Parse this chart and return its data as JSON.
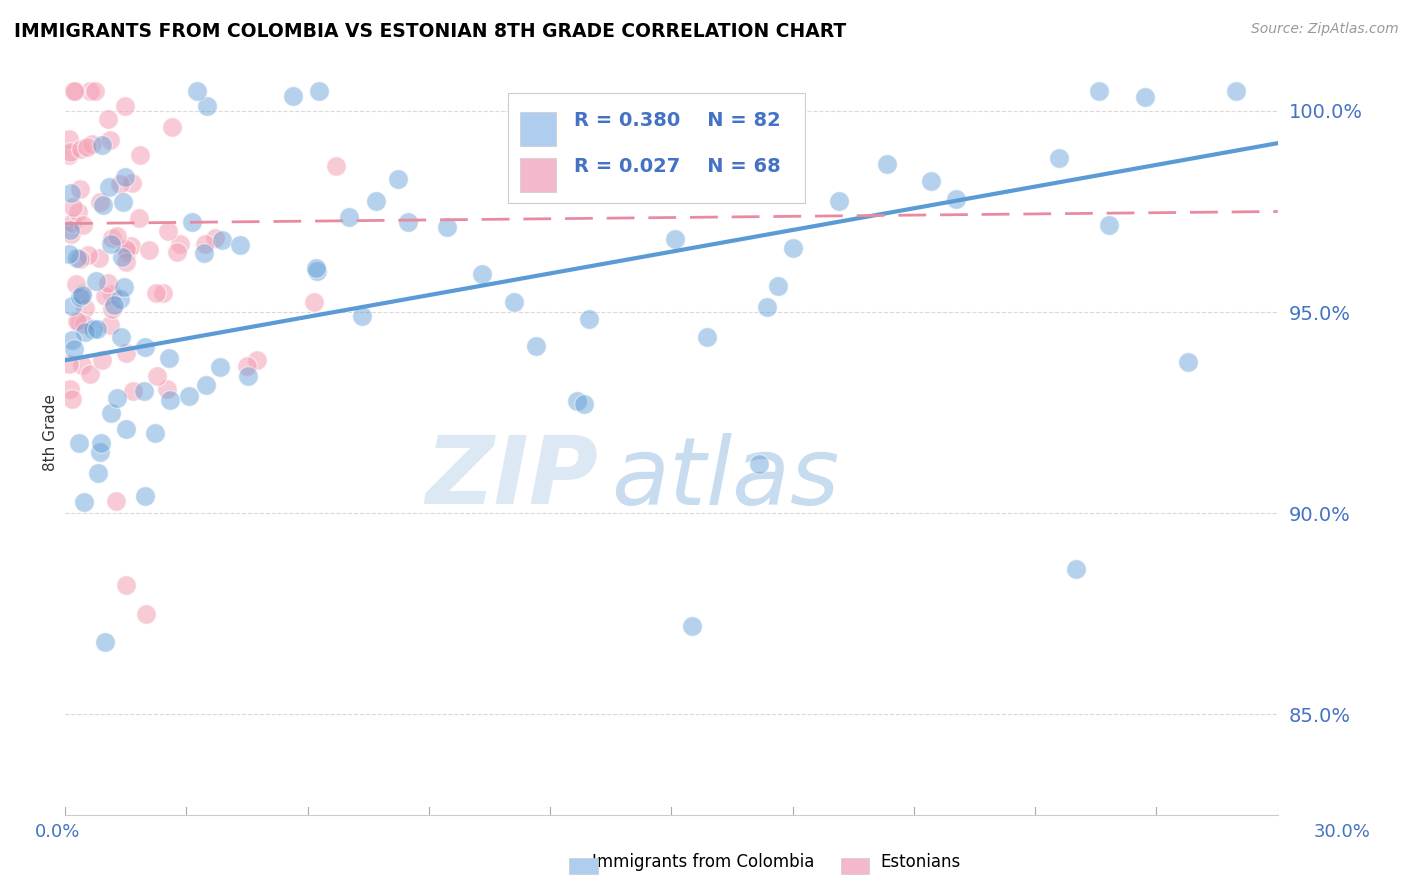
{
  "title": "IMMIGRANTS FROM COLOMBIA VS ESTONIAN 8TH GRADE CORRELATION CHART",
  "source": "Source: ZipAtlas.com",
  "ylabel": "8th Grade",
  "yticks": [
    0.85,
    0.9,
    0.95,
    1.0
  ],
  "ytick_labels": [
    "85.0%",
    "90.0%",
    "95.0%",
    "100.0%"
  ],
  "xlim": [
    0.0,
    0.3
  ],
  "ylim": [
    0.825,
    1.015
  ],
  "blue_color": "#5b9bd5",
  "pink_color": "#f4a0b5",
  "blue_line": {
    "x0": 0.0,
    "y0": 0.938,
    "x1": 0.3,
    "y1": 0.992
  },
  "pink_line": {
    "x0": 0.0,
    "y0": 0.972,
    "x1": 0.3,
    "y1": 0.975
  },
  "watermark_zip": "ZIP",
  "watermark_atlas": "atlas",
  "watermark_color": "#dce9f5",
  "grid_color": "#d0d0d0",
  "background_color": "#ffffff",
  "legend_r1": "R = 0.380    N = 82",
  "legend_r2": "R = 0.027    N = 68",
  "bottom_label1": "Immigrants from Colombia",
  "bottom_label2": "Estonians"
}
